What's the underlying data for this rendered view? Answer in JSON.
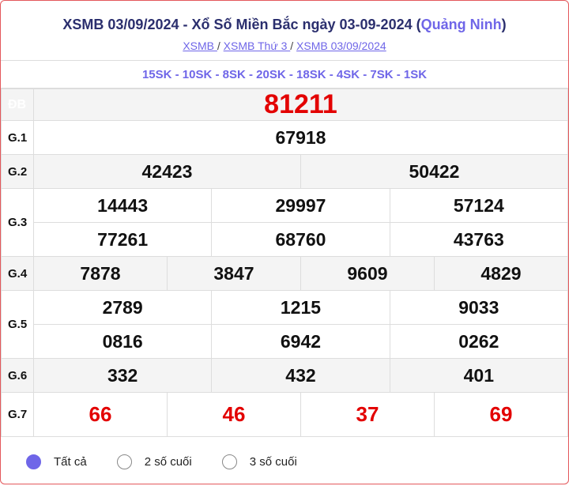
{
  "header": {
    "title_main": "XSMB 03/09/2024 - Xổ Số Miền Bắc ngày 03-09-2024 (",
    "province": "Quảng Ninh",
    "title_end": ")",
    "breadcrumbs": [
      "XSMB ",
      "XSMB Thứ 3 ",
      "XSMB 03/09/2024"
    ],
    "separator": "/"
  },
  "codes": "15SK - 10SK - 8SK - 20SK - 18SK - 4SK - 7SK - 1SK",
  "prizes": {
    "db": {
      "label": "ĐB",
      "values": [
        "81211"
      ]
    },
    "g1": {
      "label": "G.1",
      "values": [
        "67918"
      ]
    },
    "g2": {
      "label": "G.2",
      "values": [
        "42423",
        "50422"
      ]
    },
    "g3": {
      "label": "G.3",
      "values": [
        "14443",
        "29997",
        "57124",
        "77261",
        "68760",
        "43763"
      ]
    },
    "g4": {
      "label": "G.4",
      "values": [
        "7878",
        "3847",
        "9609",
        "4829"
      ]
    },
    "g5": {
      "label": "G.5",
      "values": [
        "2789",
        "1215",
        "9033",
        "0816",
        "6942",
        "0262"
      ]
    },
    "g6": {
      "label": "G.6",
      "values": [
        "332",
        "432",
        "401"
      ]
    },
    "g7": {
      "label": "G.7",
      "values": [
        "66",
        "46",
        "37",
        "69"
      ]
    }
  },
  "filter": {
    "options": [
      "Tất cả",
      "2 số cuối",
      "3 số cuối"
    ],
    "selected": "Tất cả"
  },
  "colors": {
    "accent": "#6f66e8",
    "red": "#e30000",
    "border": "#e4585b"
  }
}
